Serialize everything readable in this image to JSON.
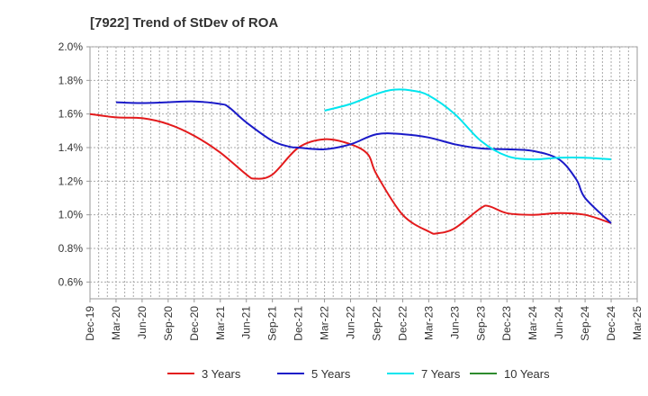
{
  "chart_data": {
    "type": "line",
    "title": "[7922]  Trend of StDev of ROA",
    "xlabel": "",
    "ylabel": "",
    "ylim": [
      0.5,
      2.0
    ],
    "y_ticks": [
      "2.0%",
      "1.8%",
      "1.6%",
      "1.4%",
      "1.2%",
      "1.0%",
      "0.8%",
      "0.6%"
    ],
    "y_tick_values": [
      2.0,
      1.8,
      1.6,
      1.4,
      1.2,
      1.0,
      0.8,
      0.6
    ],
    "x_ticks": [
      "Dec-19",
      "Mar-20",
      "Jun-20",
      "Sep-20",
      "Dec-20",
      "Mar-21",
      "Jun-21",
      "Sep-21",
      "Dec-21",
      "Mar-22",
      "Jun-22",
      "Sep-22",
      "Dec-22",
      "Mar-23",
      "Jun-23",
      "Sep-23",
      "Dec-23",
      "Mar-24",
      "Jun-24",
      "Sep-24",
      "Dec-24",
      "Mar-25"
    ],
    "grid": true,
    "legend_position": "bottom",
    "series": [
      {
        "name": "3 Years",
        "color": "#e31a1c",
        "points": [
          [
            "Dec-19",
            1.6
          ],
          [
            "Mar-20",
            1.58
          ],
          [
            "Jun-20",
            1.575
          ],
          [
            "Sep-20",
            1.54
          ],
          [
            "Dec-20",
            1.47
          ],
          [
            "Mar-21",
            1.37
          ],
          [
            "Jun-21",
            1.24
          ],
          [
            "Jul-21",
            1.215
          ],
          [
            "Sep-21",
            1.24
          ],
          [
            "Dec-21",
            1.4
          ],
          [
            "Mar-22",
            1.45
          ],
          [
            "Jun-22",
            1.42
          ],
          [
            "Aug-22",
            1.36
          ],
          [
            "Sep-22",
            1.24
          ],
          [
            "Dec-22",
            1.0
          ],
          [
            "Mar-23",
            0.9
          ],
          [
            "Apr-23",
            0.89
          ],
          [
            "Jun-23",
            0.92
          ],
          [
            "Sep-23",
            1.04
          ],
          [
            "Oct-23",
            1.05
          ],
          [
            "Dec-23",
            1.01
          ],
          [
            "Mar-24",
            1.0
          ],
          [
            "Jun-24",
            1.01
          ],
          [
            "Sep-24",
            1.0
          ],
          [
            "Dec-24",
            0.95
          ]
        ]
      },
      {
        "name": "5 Years",
        "color": "#1a1ac8",
        "points": [
          [
            "Mar-20",
            1.67
          ],
          [
            "Jun-20",
            1.665
          ],
          [
            "Sep-20",
            1.67
          ],
          [
            "Dec-20",
            1.675
          ],
          [
            "Mar-21",
            1.66
          ],
          [
            "Apr-21",
            1.64
          ],
          [
            "Jun-21",
            1.55
          ],
          [
            "Sep-21",
            1.44
          ],
          [
            "Nov-21",
            1.405
          ],
          [
            "Dec-21",
            1.4
          ],
          [
            "Mar-22",
            1.39
          ],
          [
            "Jun-22",
            1.42
          ],
          [
            "Sep-22",
            1.48
          ],
          [
            "Dec-22",
            1.48
          ],
          [
            "Mar-23",
            1.46
          ],
          [
            "Jun-23",
            1.42
          ],
          [
            "Sep-23",
            1.395
          ],
          [
            "Dec-23",
            1.39
          ],
          [
            "Mar-24",
            1.38
          ],
          [
            "Jun-24",
            1.33
          ],
          [
            "Aug-24",
            1.21
          ],
          [
            "Sep-24",
            1.1
          ],
          [
            "Dec-24",
            0.95
          ]
        ]
      },
      {
        "name": "7 Years",
        "color": "#00e5ee",
        "points": [
          [
            "Mar-22",
            1.62
          ],
          [
            "Jun-22",
            1.66
          ],
          [
            "Sep-22",
            1.72
          ],
          [
            "Nov-22",
            1.745
          ],
          [
            "Jan-23",
            1.74
          ],
          [
            "Mar-23",
            1.71
          ],
          [
            "Jun-23",
            1.6
          ],
          [
            "Sep-23",
            1.44
          ],
          [
            "Dec-23",
            1.35
          ],
          [
            "Mar-24",
            1.33
          ],
          [
            "Jun-24",
            1.34
          ],
          [
            "Sep-24",
            1.34
          ],
          [
            "Dec-24",
            1.33
          ]
        ]
      },
      {
        "name": "10 Years",
        "color": "#2e8b2e",
        "points": []
      }
    ]
  }
}
